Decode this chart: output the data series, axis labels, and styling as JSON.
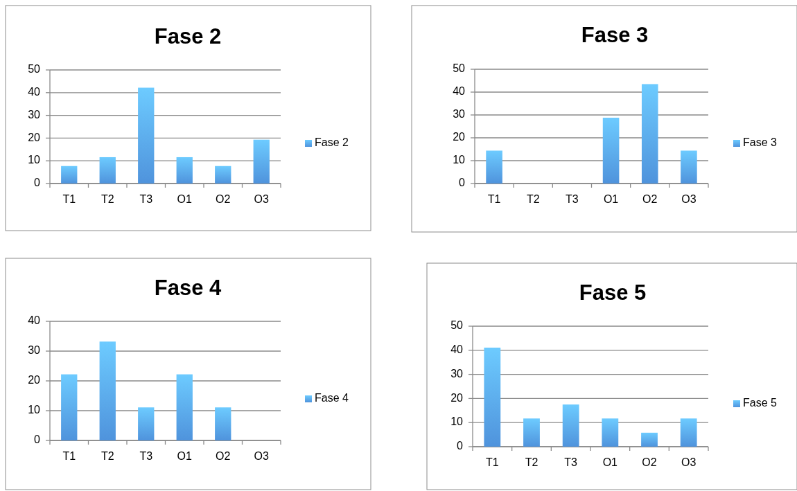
{
  "chart_data": [
    {
      "type": "bar",
      "title": "Fase 2",
      "categories": [
        "T1",
        "T2",
        "T3",
        "O1",
        "O2",
        "O3"
      ],
      "series": [
        {
          "name": "Fase 2",
          "color": "#4f93dc",
          "values": [
            7.7,
            11.6,
            42.2,
            11.6,
            7.7,
            19.3
          ]
        }
      ],
      "ylim": [
        0,
        50
      ],
      "yticks": [
        0,
        10,
        20,
        30,
        40,
        50
      ],
      "grid": "y",
      "legend": "right"
    },
    {
      "type": "bar",
      "title": "Fase 3",
      "categories": [
        "T1",
        "T2",
        "T3",
        "O1",
        "O2",
        "O3"
      ],
      "series": [
        {
          "name": "Fase 3",
          "color": "#4f93dc",
          "values": [
            14.4,
            0,
            0,
            28.8,
            43.5,
            14.4
          ]
        }
      ],
      "ylim": [
        0,
        50
      ],
      "yticks": [
        0,
        10,
        20,
        30,
        40,
        50
      ],
      "grid": "y",
      "legend": "right"
    },
    {
      "type": "bar",
      "title": "Fase 4",
      "categories": [
        "T1",
        "T2",
        "T3",
        "O1",
        "O2",
        "O3"
      ],
      "series": [
        {
          "name": "Fase 4",
          "color": "#4f93dc",
          "values": [
            22.2,
            33.2,
            11.1,
            22.2,
            11.1,
            0
          ]
        }
      ],
      "ylim": [
        0,
        40
      ],
      "yticks": [
        0,
        10,
        20,
        30,
        40
      ],
      "grid": "y",
      "legend": "right"
    },
    {
      "type": "bar",
      "title": "Fase 5",
      "categories": [
        "T1",
        "T2",
        "T3",
        "O1",
        "O2",
        "O3"
      ],
      "series": [
        {
          "name": "Fase 5",
          "color": "#4f93dc",
          "values": [
            41.1,
            11.7,
            17.5,
            11.7,
            5.8,
            11.7
          ]
        }
      ],
      "ylim": [
        0,
        50
      ],
      "yticks": [
        0,
        10,
        20,
        30,
        40,
        50
      ],
      "grid": "y",
      "legend": "right"
    }
  ]
}
